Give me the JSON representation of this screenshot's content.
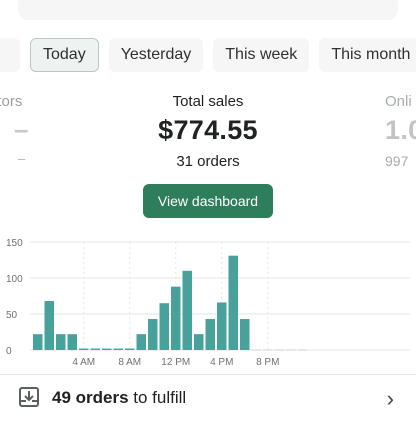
{
  "tabs": [
    {
      "label": ""
    },
    {
      "label": "Today"
    },
    {
      "label": "Yesterday"
    },
    {
      "label": "This week"
    },
    {
      "label": "This month"
    }
  ],
  "metrics": {
    "left": {
      "label": "itors",
      "value": "–",
      "sub": "–"
    },
    "center": {
      "label": "Total sales",
      "value": "$774.55",
      "sub": "31 orders"
    },
    "right": {
      "label": "Onli",
      "value": "1.0",
      "sub": "997"
    }
  },
  "view_dashboard_label": "View dashboard",
  "chart_data": {
    "type": "bar",
    "yticks": [
      "150",
      "100",
      "50",
      "0"
    ],
    "ylim": [
      0,
      150
    ],
    "xticks": [
      {
        "label": "4 AM",
        "hour": 4
      },
      {
        "label": "8 AM",
        "hour": 8
      },
      {
        "label": "12 PM",
        "hour": 12
      },
      {
        "label": "4 PM",
        "hour": 16
      },
      {
        "label": "8 PM",
        "hour": 20
      }
    ],
    "hours": [
      0,
      1,
      2,
      3,
      4,
      5,
      6,
      7,
      8,
      9,
      10,
      11,
      12,
      13,
      14,
      15,
      16,
      17,
      18,
      19,
      20,
      21,
      22,
      23
    ],
    "values": [
      22,
      68,
      22,
      22,
      2,
      2,
      2,
      2,
      2,
      22,
      43,
      65,
      88,
      110,
      22,
      43,
      66,
      131,
      43,
      0,
      0,
      0,
      0,
      0
    ],
    "bar_color": "#48a29b",
    "grid": true
  },
  "fulfill": {
    "count": "49 orders",
    "rest": " to fulfill"
  }
}
